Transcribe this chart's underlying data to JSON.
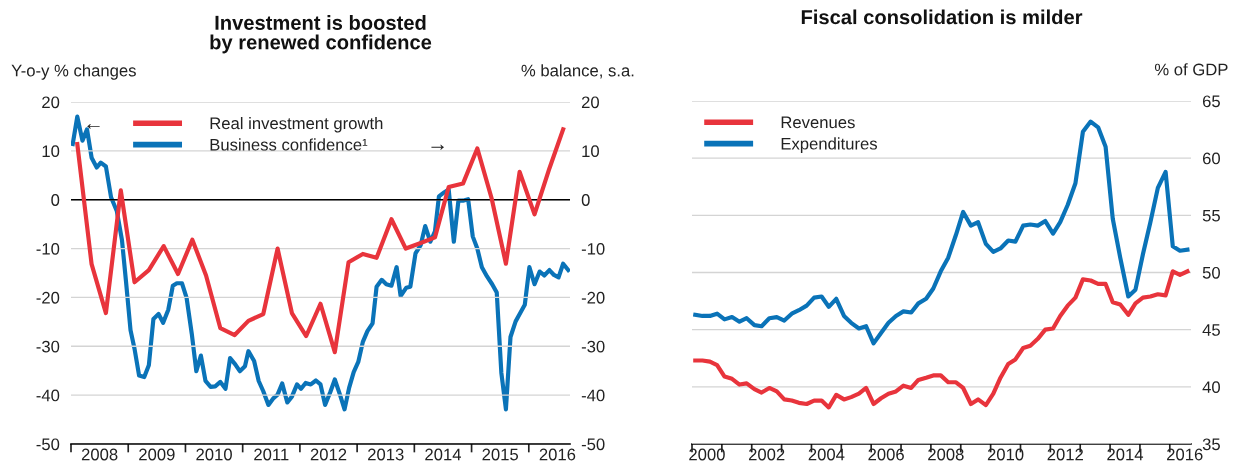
{
  "chart_data": [
    {
      "type": "line",
      "title": "Investment is boosted\nby renewed confidence",
      "ylabel": "Y-o-y % changes",
      "y2label": "% balance, s.a.",
      "xlim": [
        2008,
        2016.72
      ],
      "xticks": [
        {
          "value": 2008,
          "label": null
        },
        {
          "value": 2008.5,
          "label": "2008"
        },
        {
          "value": 2009,
          "label": null
        },
        {
          "value": 2009.5,
          "label": "2009"
        },
        {
          "value": 2010,
          "label": null
        },
        {
          "value": 2010.5,
          "label": "2010"
        },
        {
          "value": 2011,
          "label": null
        },
        {
          "value": 2011.5,
          "label": "2011"
        },
        {
          "value": 2012,
          "label": null
        },
        {
          "value": 2012.5,
          "label": "2012"
        },
        {
          "value": 2013,
          "label": null
        },
        {
          "value": 2013.5,
          "label": "2013"
        },
        {
          "value": 2014,
          "label": null
        },
        {
          "value": 2014.5,
          "label": "2014"
        },
        {
          "value": 2015,
          "label": null
        },
        {
          "value": 2015.5,
          "label": "2015"
        },
        {
          "value": 2016,
          "label": null
        },
        {
          "value": 2016.5,
          "label": "2016"
        }
      ],
      "ylim": [
        -50,
        20
      ],
      "yticks": [
        -50,
        -40,
        -30,
        -20,
        -10,
        0,
        10,
        20
      ],
      "y2lim": [
        -50,
        20
      ],
      "y2ticks": [
        -50,
        -40,
        -30,
        -20,
        -10,
        0,
        10,
        20
      ],
      "grid": "y",
      "legend": "top left",
      "ref_lines": [
        {
          "axis": "y",
          "value": 0,
          "color": "#000000"
        }
      ],
      "annotations": [
        "←",
        "→"
      ],
      "series": [
        {
          "name": "Real investment growth",
          "color": "#e8343c",
          "x": [
            2008.11,
            2008.36,
            2008.61,
            2008.87,
            2009.11,
            2009.36,
            2009.62,
            2009.87,
            2010.12,
            2010.36,
            2010.61,
            2010.86,
            2011.1,
            2011.36,
            2011.61,
            2011.86,
            2012.11,
            2012.36,
            2012.61,
            2012.85,
            2013.1,
            2013.34,
            2013.6,
            2013.85,
            2014.1,
            2014.36,
            2014.6,
            2014.85,
            2015.1,
            2015.35,
            2015.6,
            2015.84,
            2016.1,
            2016.36,
            2016.6
          ],
          "values": [
            11.4,
            -13.2,
            -23.2,
            1.9,
            -16.9,
            -14.4,
            -9.5,
            -15.2,
            -8.2,
            -15.5,
            -26.3,
            -27.7,
            -24.8,
            -23.4,
            -10.0,
            -23.2,
            -27.9,
            -21.3,
            -31.2,
            -12.8,
            -11.1,
            -11.9,
            -4.0,
            -10.0,
            -8.9,
            -7.7,
            2.6,
            3.3,
            10.5,
            0.3,
            -13.1,
            5.7,
            -3.0,
            6.4,
            14.4
          ]
        },
        {
          "name": "Business confidence¹",
          "color": "#0a73b8",
          "axis": "y2",
          "x": [
            2008.03,
            2008.11,
            2008.2,
            2008.28,
            2008.36,
            2008.45,
            2008.52,
            2008.61,
            2008.7,
            2008.8,
            2008.89,
            2008.96,
            2009.04,
            2009.11,
            2009.19,
            2009.28,
            2009.36,
            2009.44,
            2009.53,
            2009.61,
            2009.7,
            2009.78,
            2009.85,
            2009.94,
            2010.02,
            2010.11,
            2010.19,
            2010.27,
            2010.35,
            2010.44,
            2010.52,
            2010.61,
            2010.7,
            2010.78,
            2010.87,
            2010.95,
            2011.04,
            2011.1,
            2011.2,
            2011.28,
            2011.36,
            2011.45,
            2011.54,
            2011.61,
            2011.69,
            2011.78,
            2011.86,
            2011.95,
            2012.02,
            2012.1,
            2012.19,
            2012.28,
            2012.36,
            2012.44,
            2012.53,
            2012.61,
            2012.7,
            2012.78,
            2012.86,
            2012.94,
            2013.02,
            2013.1,
            2013.18,
            2013.27,
            2013.34,
            2013.43,
            2013.51,
            2013.6,
            2013.69,
            2013.76,
            2013.86,
            2013.93,
            2014.02,
            2014.11,
            2014.19,
            2014.28,
            2014.36,
            2014.43,
            2014.52,
            2014.6,
            2014.69,
            2014.77,
            2014.85,
            2014.94,
            2015.02,
            2015.1,
            2015.18,
            2015.27,
            2015.36,
            2015.44,
            2015.52,
            2015.6,
            2015.68,
            2015.77,
            2015.86,
            2015.93,
            2016.01,
            2016.1,
            2016.19,
            2016.27,
            2016.36,
            2016.44,
            2016.52,
            2016.6,
            2016.69
          ],
          "values": [
            11.4,
            17.0,
            12.1,
            14.4,
            8.6,
            6.6,
            7.6,
            6.8,
            0.5,
            -2.3,
            -8.2,
            -16.6,
            -26.7,
            -30.5,
            -36.0,
            -36.3,
            -33.9,
            -24.4,
            -23.4,
            -25.2,
            -22.5,
            -17.6,
            -17.1,
            -17.1,
            -20.1,
            -27.4,
            -35.1,
            -31.9,
            -37.1,
            -38.3,
            -38.2,
            -37.3,
            -38.7,
            -32.4,
            -33.7,
            -35.1,
            -34.1,
            -31.0,
            -33.0,
            -37.1,
            -39.2,
            -42.0,
            -40.6,
            -39.9,
            -37.6,
            -41.5,
            -40.3,
            -37.8,
            -38.7,
            -37.5,
            -37.8,
            -37.0,
            -37.8,
            -42.0,
            -39.4,
            -36.8,
            -39.9,
            -42.9,
            -38.5,
            -35.3,
            -33.2,
            -29.1,
            -26.9,
            -25.3,
            -17.8,
            -16.4,
            -17.3,
            -17.6,
            -13.8,
            -19.7,
            -18.0,
            -17.8,
            -11.0,
            -9.3,
            -5.4,
            -8.6,
            -6.5,
            0.7,
            1.5,
            2.1,
            -8.6,
            -0.2,
            -0.2,
            0.1,
            -7.5,
            -10.0,
            -13.8,
            -15.7,
            -17.3,
            -19.0,
            -35.4,
            -42.9,
            -28.1,
            -24.9,
            -23.0,
            -21.5,
            -13.8,
            -17.3,
            -14.7,
            -15.5,
            -14.4,
            -15.4,
            -15.9,
            -13.1,
            -14.4
          ]
        }
      ]
    },
    {
      "type": "line",
      "title": "Fiscal consolidation is milder",
      "y2label": "% of GDP",
      "xlim": [
        2000,
        2016.71
      ],
      "xticks": [
        {
          "value": 2000,
          "label": null
        },
        {
          "value": 2000.5,
          "label": "2000"
        },
        {
          "value": 2001,
          "label": null
        },
        {
          "value": 2002,
          "label": null
        },
        {
          "value": 2002.5,
          "label": "2002"
        },
        {
          "value": 2003,
          "label": null
        },
        {
          "value": 2004,
          "label": null
        },
        {
          "value": 2004.5,
          "label": "2004"
        },
        {
          "value": 2005,
          "label": null
        },
        {
          "value": 2006,
          "label": null
        },
        {
          "value": 2006.5,
          "label": "2006"
        },
        {
          "value": 2007,
          "label": null
        },
        {
          "value": 2008,
          "label": null
        },
        {
          "value": 2008.5,
          "label": "2008"
        },
        {
          "value": 2009,
          "label": null
        },
        {
          "value": 2010,
          "label": null
        },
        {
          "value": 2010.5,
          "label": "2010"
        },
        {
          "value": 2011,
          "label": null
        },
        {
          "value": 2012,
          "label": null
        },
        {
          "value": 2012.5,
          "label": "2012"
        },
        {
          "value": 2013,
          "label": null
        },
        {
          "value": 2014,
          "label": null
        },
        {
          "value": 2014.5,
          "label": "2014"
        },
        {
          "value": 2015,
          "label": null
        },
        {
          "value": 2016,
          "label": null
        },
        {
          "value": 2016.5,
          "label": "2016"
        }
      ],
      "y2lim": [
        35,
        65
      ],
      "y2ticks": [
        35,
        40,
        45,
        50,
        55,
        60,
        65
      ],
      "grid": "y",
      "legend": "top left",
      "series": [
        {
          "name": "Revenues",
          "color": "#e8343c",
          "axis": "y2",
          "x": [
            2000.11,
            2000.35,
            2000.6,
            2000.84,
            2001.09,
            2001.34,
            2001.59,
            2001.83,
            2002.09,
            2002.33,
            2002.59,
            2002.84,
            2003.09,
            2003.34,
            2003.58,
            2003.84,
            2004.09,
            2004.34,
            2004.58,
            2004.83,
            2005.09,
            2005.33,
            2005.59,
            2005.83,
            2006.08,
            2006.33,
            2006.58,
            2006.83,
            2007.08,
            2007.34,
            2007.58,
            2007.84,
            2008.08,
            2008.33,
            2008.58,
            2008.84,
            2009.08,
            2009.34,
            2009.58,
            2009.84,
            2010.09,
            2010.33,
            2010.59,
            2010.83,
            2011.09,
            2011.33,
            2011.58,
            2011.83,
            2012.09,
            2012.33,
            2012.58,
            2012.84,
            2013.09,
            2013.35,
            2013.6,
            2013.85,
            2014.09,
            2014.34,
            2014.61,
            2014.85,
            2015.1,
            2015.35,
            2015.6,
            2015.86,
            2016.1,
            2016.34,
            2016.59
          ],
          "values": [
            42.3,
            42.3,
            42.2,
            41.9,
            40.9,
            40.7,
            40.2,
            40.3,
            39.8,
            39.5,
            39.9,
            39.6,
            38.9,
            38.8,
            38.6,
            38.5,
            38.8,
            38.8,
            38.2,
            39.3,
            38.9,
            39.1,
            39.4,
            39.9,
            38.5,
            39.0,
            39.4,
            39.6,
            40.1,
            39.9,
            40.6,
            40.8,
            41.0,
            41.0,
            40.4,
            40.4,
            39.9,
            38.5,
            38.9,
            38.4,
            39.4,
            40.8,
            42.0,
            42.4,
            43.4,
            43.6,
            44.2,
            45.0,
            45.1,
            46.2,
            47.1,
            47.8,
            49.4,
            49.3,
            49.0,
            49.0,
            47.4,
            47.2,
            46.3,
            47.3,
            47.8,
            47.9,
            48.1,
            48.0,
            50.1,
            49.8,
            50.1
          ]
        },
        {
          "name": "Expenditures",
          "color": "#0a73b8",
          "axis": "y2",
          "x": [
            2000.11,
            2000.35,
            2000.6,
            2000.84,
            2001.09,
            2001.34,
            2001.59,
            2001.83,
            2002.09,
            2002.33,
            2002.59,
            2002.84,
            2003.09,
            2003.34,
            2003.58,
            2003.84,
            2004.09,
            2004.34,
            2004.58,
            2004.83,
            2005.09,
            2005.33,
            2005.59,
            2005.83,
            2006.08,
            2006.33,
            2006.58,
            2006.83,
            2007.08,
            2007.34,
            2007.58,
            2007.84,
            2008.08,
            2008.33,
            2008.58,
            2008.84,
            2009.08,
            2009.34,
            2009.58,
            2009.84,
            2010.09,
            2010.33,
            2010.59,
            2010.83,
            2011.09,
            2011.33,
            2011.58,
            2011.83,
            2012.09,
            2012.33,
            2012.58,
            2012.84,
            2013.09,
            2013.35,
            2013.6,
            2013.85,
            2014.09,
            2014.34,
            2014.61,
            2014.85,
            2015.1,
            2015.35,
            2015.6,
            2015.86,
            2016.1,
            2016.34,
            2016.59
          ],
          "values": [
            46.3,
            46.2,
            46.2,
            46.4,
            45.9,
            46.1,
            45.7,
            46.0,
            45.4,
            45.3,
            46.0,
            46.1,
            45.8,
            46.4,
            46.7,
            47.1,
            47.8,
            47.9,
            47.0,
            47.7,
            46.2,
            45.6,
            45.1,
            45.3,
            43.8,
            44.7,
            45.6,
            46.2,
            46.6,
            46.5,
            47.3,
            47.7,
            48.6,
            50.1,
            51.3,
            53.3,
            55.3,
            54.1,
            54.4,
            52.5,
            51.8,
            52.1,
            52.8,
            52.7,
            54.1,
            54.2,
            54.1,
            54.5,
            53.4,
            54.4,
            55.9,
            57.8,
            62.3,
            63.2,
            62.7,
            61.0,
            54.7,
            51.3,
            47.9,
            48.5,
            51.6,
            54.4,
            57.4,
            58.8,
            52.3,
            51.9,
            52.0
          ]
        }
      ]
    }
  ]
}
